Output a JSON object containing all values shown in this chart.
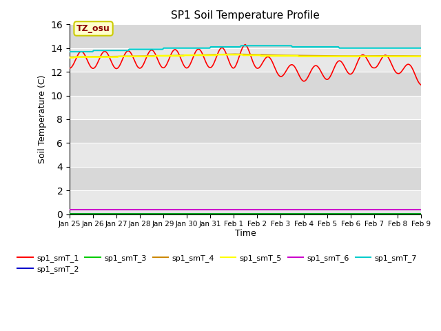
{
  "title": "SP1 Soil Temperature Profile",
  "xlabel": "Time",
  "ylabel": "Soil Temperature (C)",
  "ylim": [
    0,
    16
  ],
  "yticks": [
    0,
    2,
    4,
    6,
    8,
    10,
    12,
    14,
    16
  ],
  "bg_color_light": "#e8e8e8",
  "bg_color_dark": "#d8d8d8",
  "annotation_text": "TZ_osu",
  "annotation_color": "#8b0000",
  "annotation_bg": "#ffffcc",
  "annotation_border": "#cccc00",
  "series_colors": {
    "sp1_smT_1": "#ff0000",
    "sp1_smT_2": "#0000cc",
    "sp1_smT_3": "#00cc00",
    "sp1_smT_4": "#cc8800",
    "sp1_smT_5": "#ffff00",
    "sp1_smT_6": "#cc00cc",
    "sp1_smT_7": "#00cccc"
  },
  "x_tick_labels": [
    "Jan 25",
    "Jan 26",
    "Jan 27",
    "Jan 28",
    "Jan 29",
    "Jan 30",
    "Jan 31",
    "Feb 1",
    "Feb 2",
    "Feb 3",
    "Feb 4",
    "Feb 5",
    "Feb 6",
    "Feb 7",
    "Feb 8",
    "Feb 9"
  ],
  "n_points": 337
}
